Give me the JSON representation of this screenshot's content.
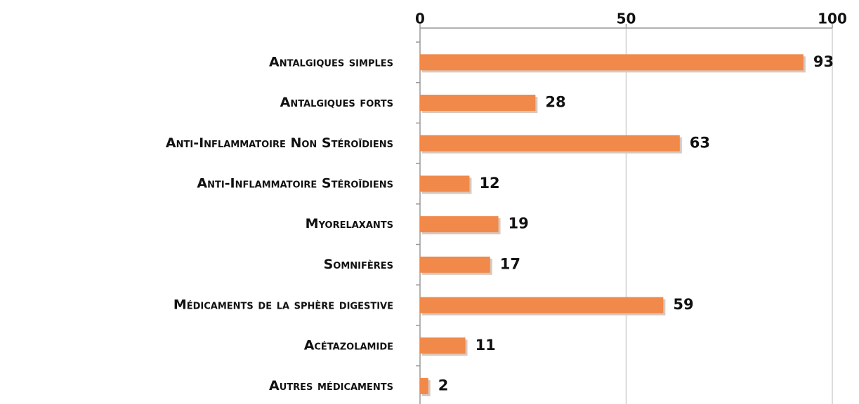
{
  "chart_data": {
    "type": "bar",
    "orientation": "horizontal",
    "categories": [
      "Antalgiques simples",
      "Antalgiques forts",
      "Anti-Inflammatoire Non Stéroïdiens",
      "Anti-Inflammatoire Stéroïdiens",
      "Myorelaxants",
      "Somnifères",
      "Médicaments de la sphère digestive",
      "Acétazolamide",
      "Autres médicaments"
    ],
    "values": [
      93,
      28,
      63,
      12,
      19,
      17,
      59,
      11,
      2
    ],
    "color": "#f0894a",
    "xlim": [
      0,
      100
    ],
    "xticks": [
      0,
      50,
      100
    ],
    "grid": true
  }
}
